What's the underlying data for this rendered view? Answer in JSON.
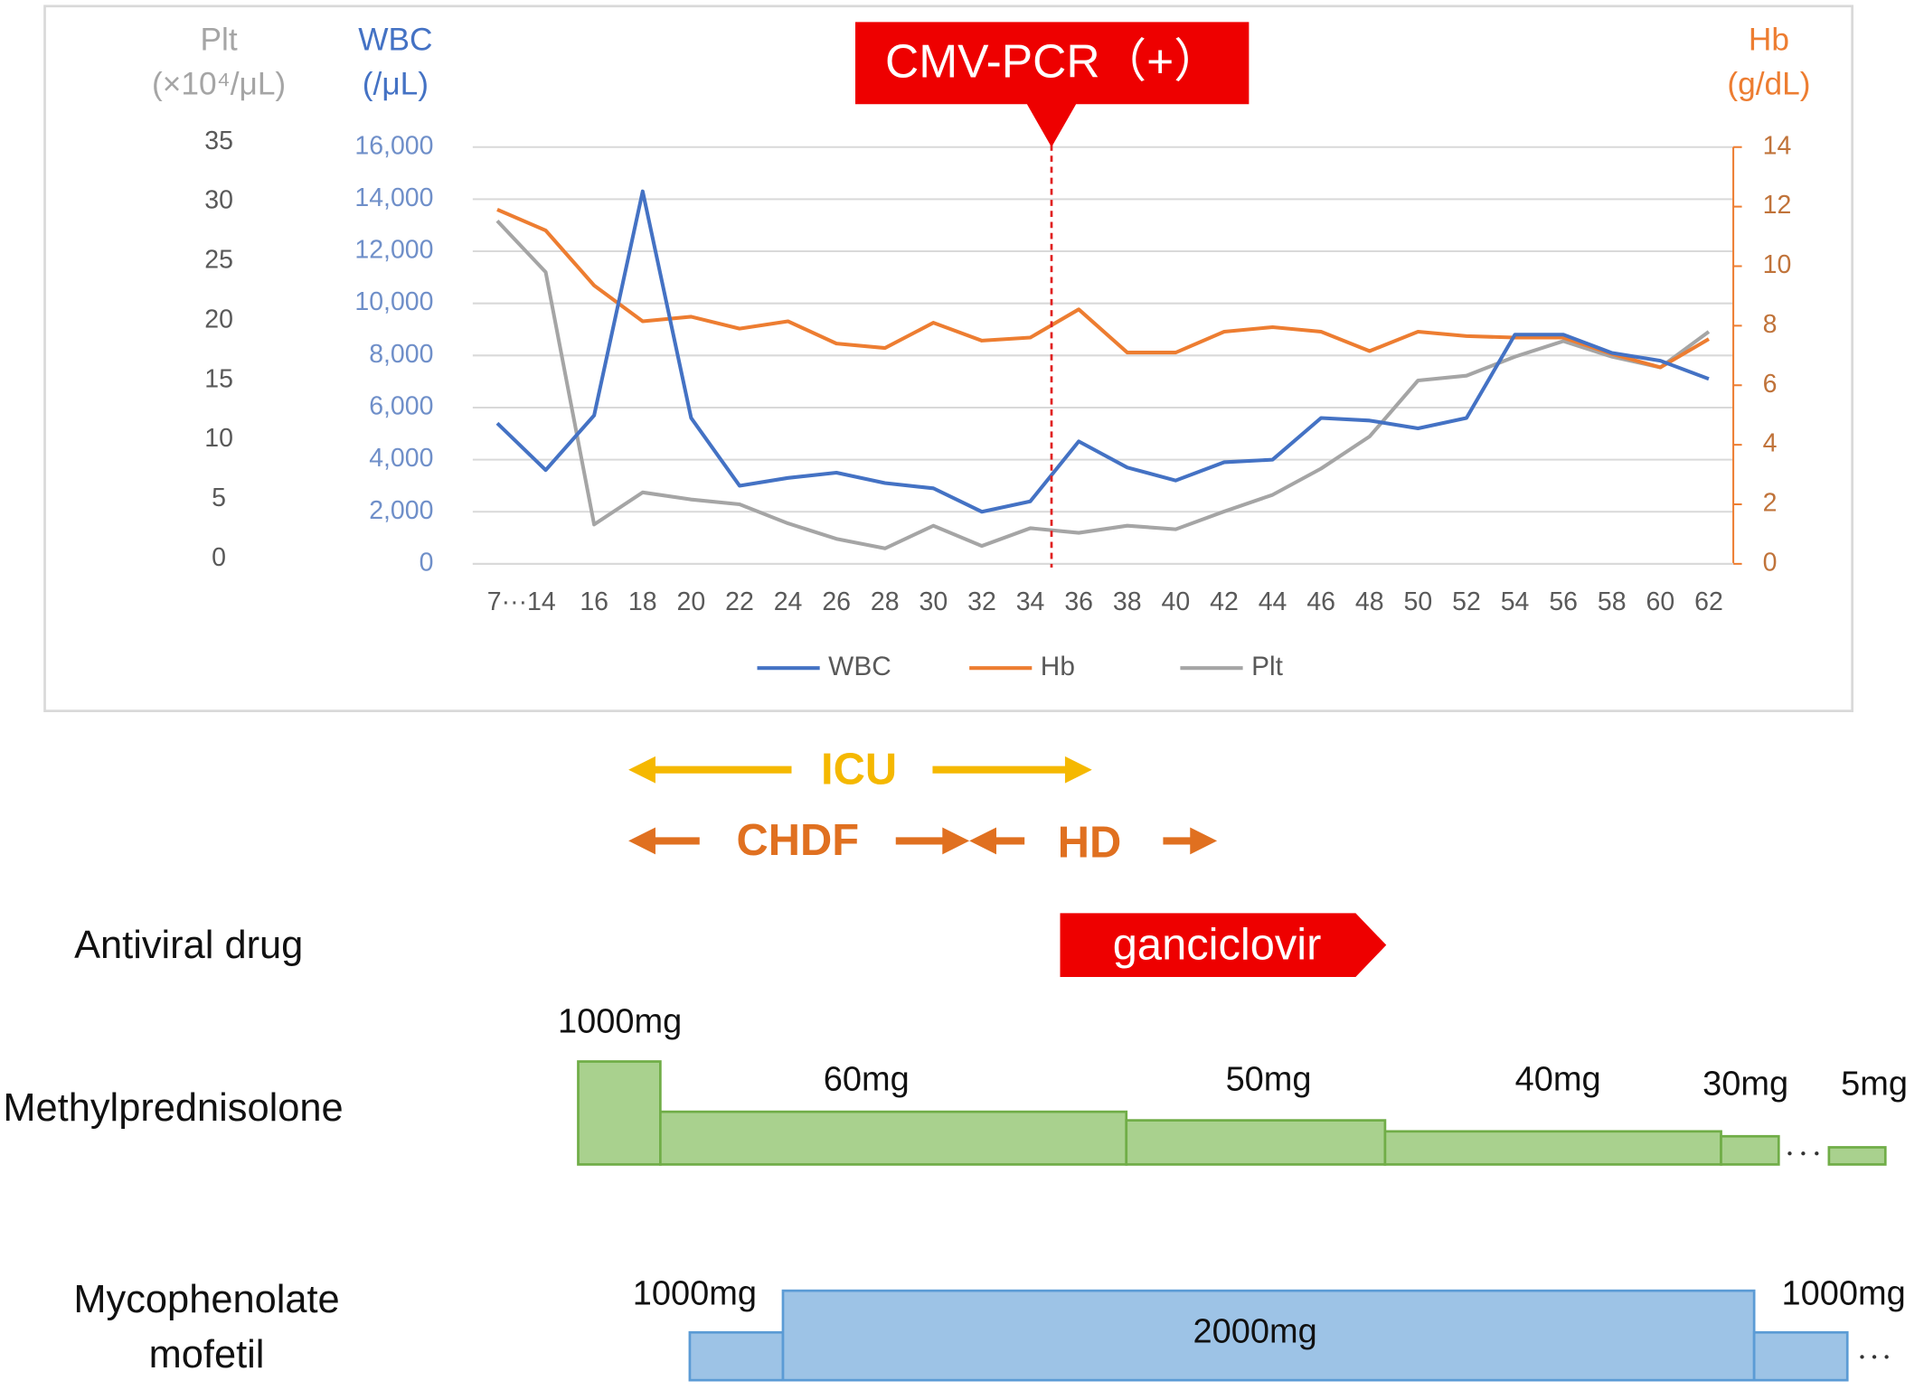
{
  "chart_data": {
    "type": "line",
    "categories": [
      "7···14",
      null,
      "16",
      "18",
      "20",
      "22",
      "24",
      "26",
      "28",
      "30",
      "32",
      "34",
      "36",
      "38",
      "40",
      "42",
      "44",
      "46",
      "48",
      "50",
      "52",
      "54",
      "56",
      "58",
      "60",
      "62"
    ],
    "series": [
      {
        "name": "WBC",
        "color": "#4472c4",
        "values": [
          5400,
          3600,
          5700,
          14300,
          5600,
          3000,
          3300,
          3500,
          3100,
          2900,
          2000,
          2400,
          4700,
          3700,
          3200,
          3900,
          4000,
          5600,
          5500,
          5200,
          5600,
          8800,
          8800,
          8100,
          7800,
          7100
        ]
      },
      {
        "name": "Hb",
        "color": "#ed7d31",
        "axis": "y2",
        "values": [
          11.9,
          11.2,
          9.35,
          8.15,
          8.3,
          7.9,
          8.15,
          7.4,
          7.25,
          8.1,
          7.5,
          7.6,
          8.55,
          7.1,
          7.1,
          7.8,
          7.95,
          7.8,
          7.15,
          7.8,
          7.65,
          7.6,
          7.6,
          7.05,
          6.6,
          7.55
        ]
      },
      {
        "name": "Plt",
        "color": "#a5a5a5",
        "axis": "y3",
        "values": [
          28.8,
          24.5,
          3.3,
          6.0,
          5.4,
          5.0,
          3.4,
          2.1,
          1.3,
          3.2,
          1.5,
          3.0,
          2.6,
          3.2,
          2.9,
          4.4,
          5.8,
          8.0,
          10.7,
          15.4,
          15.8,
          17.4,
          18.7,
          17.4,
          16.5,
          19.5
        ]
      }
    ],
    "ylabel": [
      "WBC",
      "(/μL)"
    ],
    "y2label": [
      "Hb",
      "(g/dL)"
    ],
    "y3label": [
      "Plt",
      "(×10⁴/μL)"
    ],
    "ylim": [
      0,
      16000
    ],
    "yticks": [
      0,
      {
        "value": 2000,
        "label": "2,000"
      },
      {
        "value": 4000,
        "label": "4,000"
      },
      {
        "value": 6000,
        "label": "6,000"
      },
      {
        "value": 8000,
        "label": "8,000"
      },
      {
        "value": 10000,
        "label": "10,000"
      },
      {
        "value": 12000,
        "label": "12,000"
      },
      {
        "value": 14000,
        "label": "14,000"
      },
      {
        "value": 16000,
        "label": "16,000"
      }
    ],
    "y2lim": [
      0,
      14
    ],
    "y2ticks": [
      0,
      2,
      4,
      6,
      8,
      10,
      12,
      14
    ],
    "y3lim": [
      0,
      35
    ],
    "y3ticks": [
      0,
      5,
      10,
      15,
      20,
      25,
      30,
      35
    ],
    "grid": true,
    "legend": "bottom",
    "annotation": "CMV-PCR（+）"
  },
  "timeline": {
    "icu": "ICU",
    "chdf": "CHDF",
    "hd": "HD",
    "antiviral": {
      "label": "Antiviral drug",
      "drug": "ganciclovir"
    },
    "methylprednisolone": {
      "label": "Methylprednisolone",
      "doses": [
        "1000mg",
        "60mg",
        "50mg",
        "40mg",
        "30mg",
        "5mg"
      ]
    },
    "mycophenolate": {
      "label": [
        "Mycophenolate",
        "mofetil"
      ],
      "doses": [
        "1000mg",
        "2000mg",
        "1000mg"
      ]
    }
  }
}
